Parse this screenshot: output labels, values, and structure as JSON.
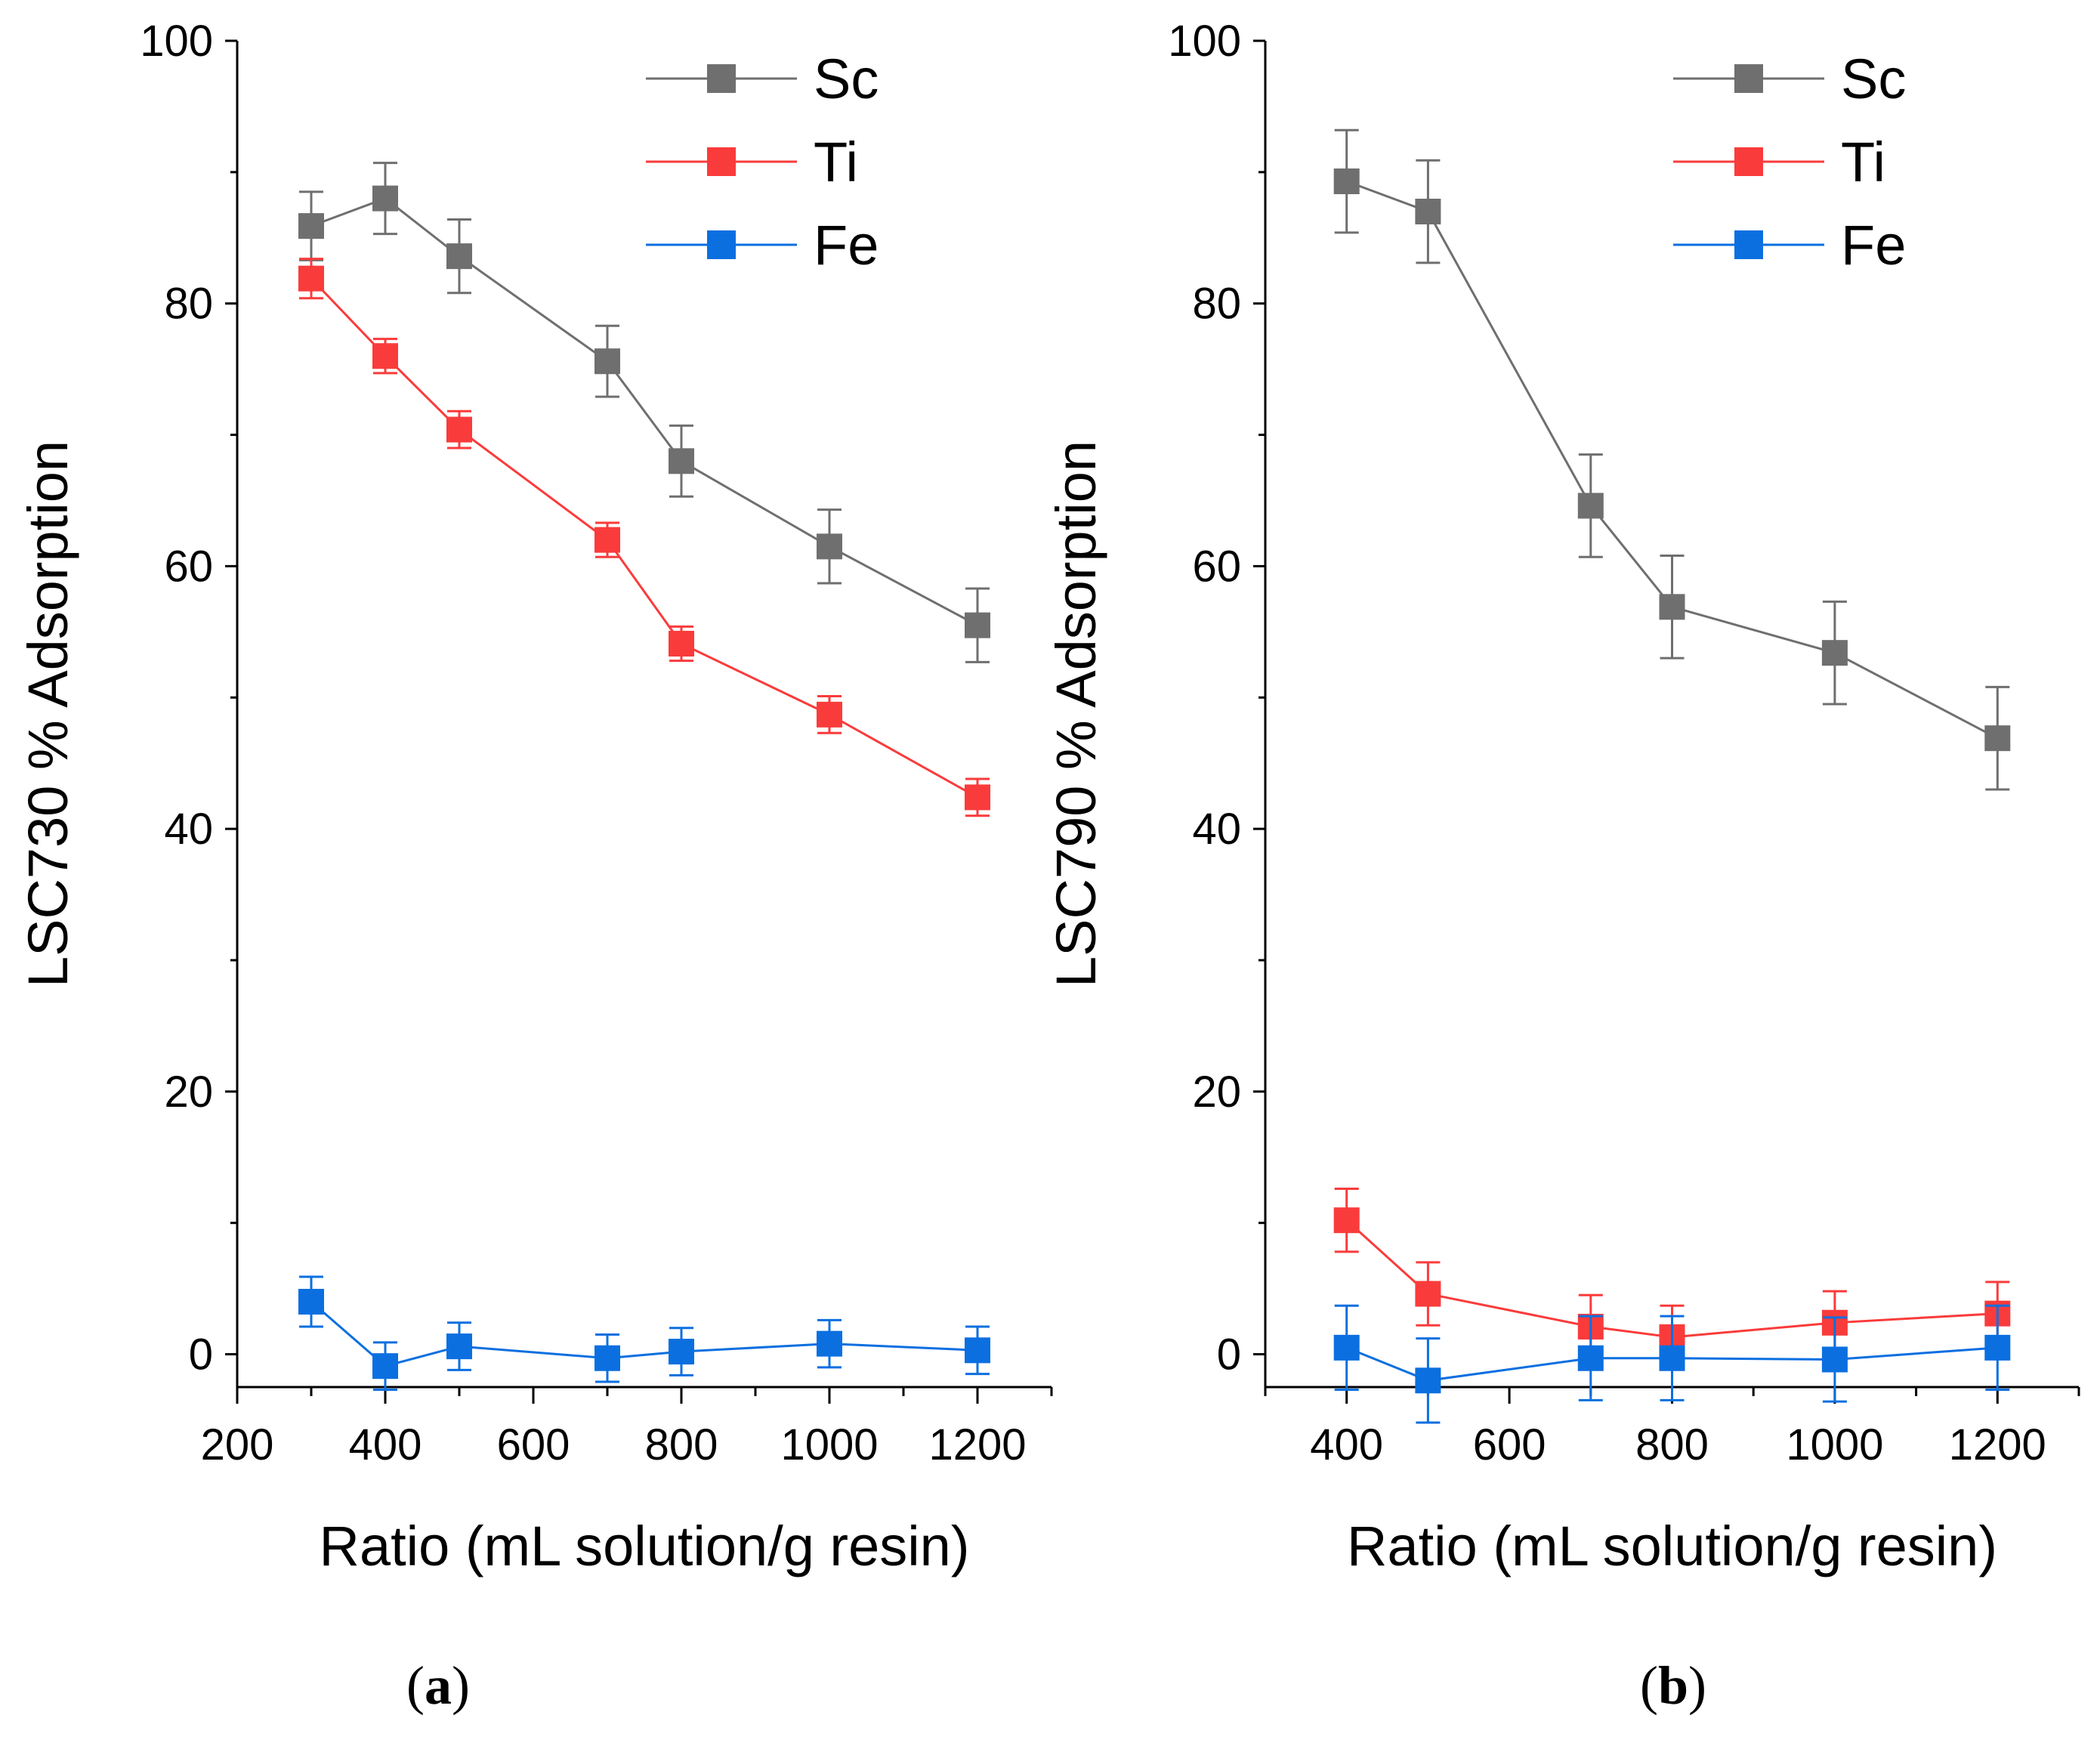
{
  "chart_data": [
    {
      "type": "line",
      "panel_label": "(a)",
      "panel_letter": "a",
      "xlabel": "Ratio (mL solution/g resin)",
      "ylabel": "LSC730 % Adsorption",
      "xlim": [
        200,
        1300
      ],
      "ylim": [
        -2.5,
        100
      ],
      "xticks": [
        200,
        400,
        600,
        800,
        1000,
        1200
      ],
      "xtick_labels": [
        "200",
        "400",
        "600",
        "800",
        "1000",
        "1200"
      ],
      "yticks": [
        0,
        20,
        40,
        60,
        80,
        100
      ],
      "ytick_labels": [
        "0",
        "20",
        "40",
        "60",
        "80",
        "100"
      ],
      "legend_position": "top-right",
      "series": [
        {
          "name": "Sc",
          "color": "#6f6f6f",
          "x": [
            300,
            400,
            500,
            700,
            800,
            1000,
            1200
          ],
          "y": [
            85.9,
            88.0,
            83.6,
            75.6,
            68.0,
            61.5,
            55.5
          ],
          "err": [
            2.6,
            2.7,
            2.8,
            2.7,
            2.7,
            2.8,
            2.8
          ]
        },
        {
          "name": "Ti",
          "color": "#fa3b3b",
          "x": [
            300,
            400,
            500,
            700,
            800,
            1000,
            1200
          ],
          "y": [
            81.9,
            76.0,
            70.4,
            62.0,
            54.1,
            48.7,
            42.4
          ],
          "err": [
            1.5,
            1.3,
            1.4,
            1.3,
            1.3,
            1.4,
            1.4
          ]
        },
        {
          "name": "Fe",
          "color": "#0b6fe0",
          "x": [
            300,
            400,
            500,
            700,
            800,
            1000,
            1200
          ],
          "y": [
            4.0,
            -0.9,
            0.6,
            -0.3,
            0.2,
            0.8,
            0.3
          ],
          "err": [
            1.9,
            1.8,
            1.8,
            1.8,
            1.8,
            1.8,
            1.8
          ]
        }
      ]
    },
    {
      "type": "line",
      "panel_label": "(b)",
      "panel_letter": "b",
      "xlabel": "Ratio (mL solution/g resin)",
      "ylabel": "LSC790 % Adsorption",
      "xlim": [
        300,
        1300
      ],
      "ylim": [
        -2.5,
        100
      ],
      "xticks": [
        400,
        600,
        800,
        1000,
        1200
      ],
      "xtick_labels": [
        "400",
        "600",
        "800",
        "1000",
        "1200"
      ],
      "yticks": [
        0,
        20,
        40,
        60,
        80,
        100
      ],
      "ytick_labels": [
        "0",
        "20",
        "40",
        "60",
        "80",
        "100"
      ],
      "legend_position": "top-right",
      "series": [
        {
          "name": "Sc",
          "color": "#6f6f6f",
          "x": [
            400,
            500,
            700,
            800,
            1000,
            1200
          ],
          "y": [
            89.3,
            87.0,
            64.6,
            56.9,
            53.4,
            46.9
          ],
          "err": [
            3.9,
            3.9,
            3.9,
            3.9,
            3.9,
            3.9
          ]
        },
        {
          "name": "Ti",
          "color": "#fa3b3b",
          "x": [
            400,
            500,
            700,
            800,
            1000,
            1200
          ],
          "y": [
            10.2,
            4.6,
            2.1,
            1.3,
            2.4,
            3.1
          ],
          "err": [
            2.4,
            2.4,
            2.4,
            2.4,
            2.4,
            2.4
          ]
        },
        {
          "name": "Fe",
          "color": "#0b6fe0",
          "x": [
            400,
            500,
            700,
            800,
            1000,
            1200
          ],
          "y": [
            0.5,
            -2.0,
            -0.3,
            -0.3,
            -0.4,
            0.5
          ],
          "err": [
            3.2,
            3.2,
            3.2,
            3.2,
            3.2,
            3.2
          ]
        }
      ]
    }
  ]
}
